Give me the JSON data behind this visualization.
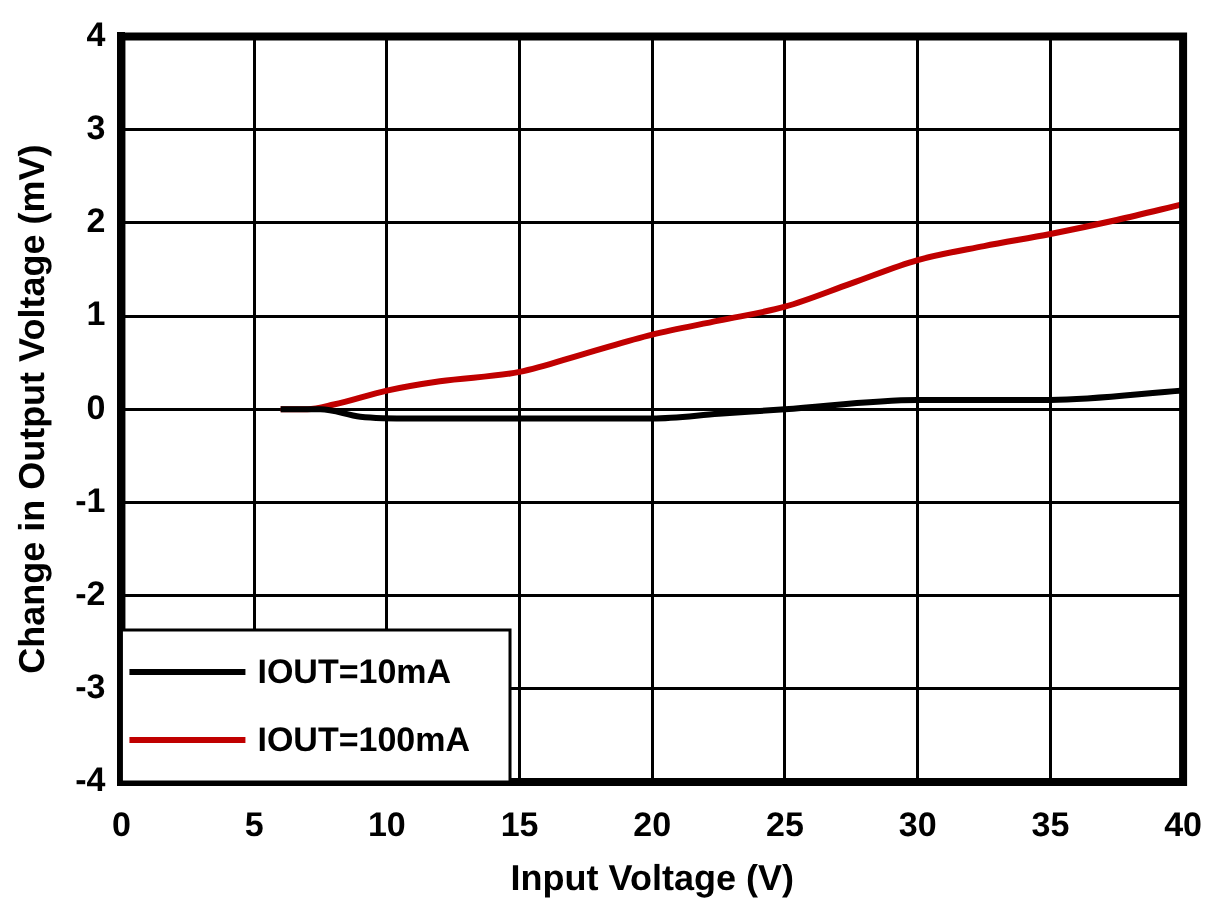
{
  "chart_data": {
    "type": "line",
    "xlabel": "Input Voltage (V)",
    "ylabel": "Change in Output Voltage (mV)",
    "xlim": [
      0,
      40
    ],
    "xticks": [
      0,
      5,
      10,
      15,
      20,
      25,
      30,
      35,
      40
    ],
    "ylim": [
      -4,
      4
    ],
    "yticks": [
      -4,
      -3,
      -2,
      -1,
      0,
      1,
      2,
      3,
      4
    ],
    "grid": true,
    "legend": "bottom left",
    "marker": "none",
    "line_style": "solid",
    "series": [
      {
        "name": "IOUT=10mA",
        "color": "#000000",
        "x": [
          6,
          7.5,
          9,
          11,
          15,
          20,
          22.5,
          25,
          30,
          33,
          35,
          40
        ],
        "values": [
          0,
          0,
          -0.08,
          -0.1,
          -0.1,
          -0.1,
          -0.05,
          0,
          0.1,
          0.1,
          0.1,
          0.2
        ]
      },
      {
        "name": "IOUT=100mA",
        "color": "#c00000",
        "x": [
          6,
          7,
          8,
          10,
          12,
          15,
          17.5,
          20,
          22.5,
          25,
          27.5,
          30,
          32.5,
          35,
          37.5,
          40
        ],
        "values": [
          0,
          0,
          0.05,
          0.2,
          0.3,
          0.4,
          0.6,
          0.8,
          0.95,
          1.1,
          1.35,
          1.6,
          1.75,
          1.88,
          2.03,
          2.2
        ]
      }
    ]
  }
}
